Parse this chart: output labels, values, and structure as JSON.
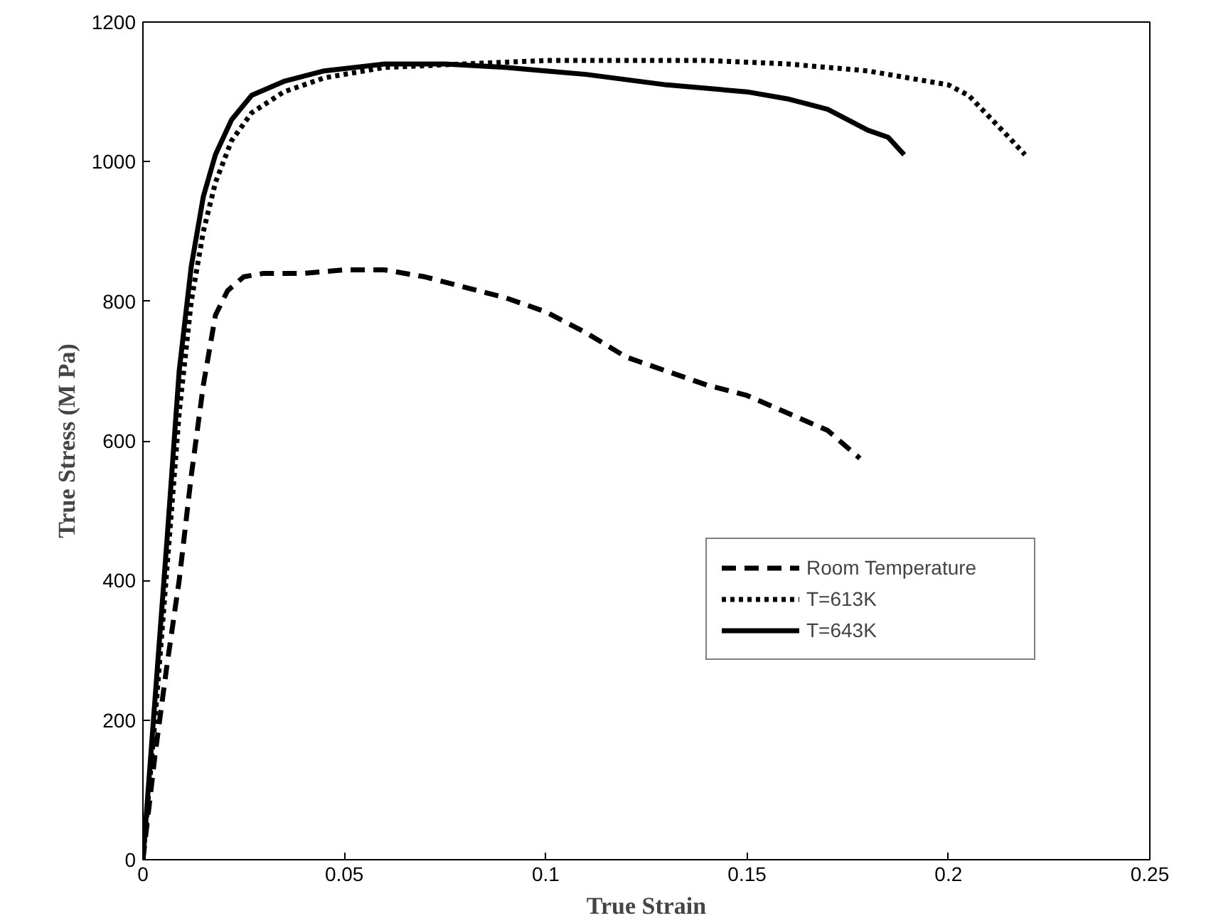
{
  "chart_data": {
    "type": "line",
    "xlabel": "True Strain",
    "ylabel": "True Stress (M Pa)",
    "xlim": [
      0,
      0.25
    ],
    "ylim": [
      0,
      1200
    ],
    "xticks": [
      0,
      0.05,
      0.1,
      0.15,
      0.2,
      0.25
    ],
    "yticks": [
      0,
      200,
      400,
      600,
      800,
      1000,
      1200
    ],
    "grid": false,
    "legend": "right",
    "marker": "none",
    "series": [
      {
        "name": "Room Temperature",
        "color": "#000000",
        "line_style": "dashed",
        "x": [
          0,
          0.003,
          0.006,
          0.009,
          0.012,
          0.015,
          0.018,
          0.021,
          0.025,
          0.03,
          0.04,
          0.05,
          0.06,
          0.07,
          0.08,
          0.09,
          0.1,
          0.11,
          0.12,
          0.13,
          0.14,
          0.15,
          0.16,
          0.17,
          0.178
        ],
        "values": [
          0,
          150,
          280,
          400,
          550,
          680,
          780,
          815,
          835,
          840,
          840,
          845,
          845,
          835,
          820,
          805,
          785,
          755,
          720,
          700,
          680,
          665,
          640,
          615,
          575
        ]
      },
      {
        "name": "T=613K",
        "color": "#000000",
        "line_style": "dotted",
        "x": [
          0,
          0.003,
          0.006,
          0.009,
          0.012,
          0.015,
          0.018,
          0.022,
          0.027,
          0.035,
          0.045,
          0.06,
          0.08,
          0.1,
          0.12,
          0.14,
          0.16,
          0.18,
          0.19,
          0.2,
          0.205,
          0.21,
          0.215,
          0.219
        ],
        "values": [
          0,
          200,
          420,
          640,
          800,
          900,
          970,
          1030,
          1070,
          1100,
          1120,
          1135,
          1140,
          1145,
          1145,
          1145,
          1140,
          1130,
          1120,
          1110,
          1095,
          1065,
          1035,
          1010
        ]
      },
      {
        "name": "T=643K",
        "color": "#000000",
        "line_style": "solid",
        "x": [
          0,
          0.003,
          0.006,
          0.009,
          0.012,
          0.015,
          0.018,
          0.022,
          0.027,
          0.035,
          0.045,
          0.06,
          0.075,
          0.09,
          0.1,
          0.11,
          0.13,
          0.15,
          0.16,
          0.17,
          0.175,
          0.18,
          0.185,
          0.189
        ],
        "values": [
          0,
          230,
          460,
          700,
          850,
          950,
          1010,
          1060,
          1095,
          1115,
          1130,
          1140,
          1140,
          1135,
          1130,
          1125,
          1110,
          1100,
          1090,
          1075,
          1060,
          1045,
          1035,
          1010
        ]
      }
    ]
  }
}
